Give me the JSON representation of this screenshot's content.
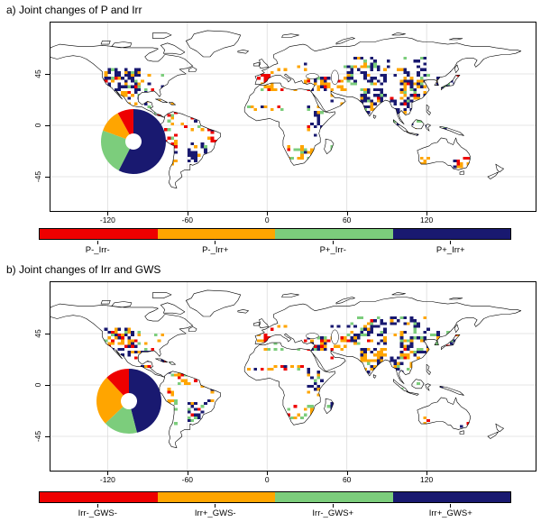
{
  "palette": {
    "red": "#EE0000",
    "orange": "#FFA500",
    "green": "#7CCD7C",
    "navy": "#191970"
  },
  "chart_data": [
    {
      "type": "map",
      "title": "a) Joint changes of P and Irr",
      "projection": "equirectangular",
      "lon_range": [
        -163,
        202
      ],
      "lat_range": [
        -75,
        90
      ],
      "x_ticks": [
        -120,
        -60,
        0,
        60,
        120
      ],
      "y_ticks": [
        45,
        0,
        -45
      ],
      "grid": true,
      "legend_position": "bottom",
      "categories": [
        "P-_Irr-",
        "P-_Irr+",
        "P+_Irr-",
        "P+_Irr+"
      ],
      "colors": [
        "#EE0000",
        "#FFA500",
        "#7CCD7C",
        "#191970"
      ],
      "donut": {
        "unit": "percent_of_colored_cells",
        "slices_clockwise_from_top": [
          {
            "label": "P+_Irr+",
            "color": "#191970",
            "pct": 57.5
          },
          {
            "label": "P+_Irr-",
            "color": "#7CCD7C",
            "pct": 23.0
          },
          {
            "label": "P-_Irr+",
            "color": "#FFA500",
            "pct": 11.5
          },
          {
            "label": "P-_Irr-",
            "color": "#EE0000",
            "pct": 8.0
          }
        ]
      },
      "cell_size_deg": 2.5,
      "regions": [
        [
          -124,
          -95,
          30,
          49,
          0.55,
          0.12,
          0.2,
          0.12,
          0.56
        ],
        [
          -95,
          -78,
          30,
          44,
          0.15,
          0.1,
          0.3,
          0.4,
          0.2
        ],
        [
          -112,
          -88,
          14,
          30,
          0.4,
          0.25,
          0.45,
          0.1,
          0.2
        ],
        [
          -92,
          -60,
          6,
          22,
          0.25,
          0.2,
          0.5,
          0.05,
          0.25
        ],
        [
          -75,
          -45,
          -5,
          8,
          0.18,
          0.2,
          0.3,
          0.3,
          0.2
        ],
        [
          -46,
          -34,
          -16,
          -2,
          0.35,
          0.3,
          0.4,
          0.2,
          0.1
        ],
        [
          -62,
          -46,
          -33,
          -15,
          0.5,
          0.05,
          0.25,
          0.1,
          0.6
        ],
        [
          -78,
          -68,
          -35,
          -4,
          0.25,
          0.3,
          0.4,
          0.2,
          0.1
        ],
        [
          -9,
          2,
          36,
          43,
          0.7,
          0.7,
          0.22,
          0.03,
          0.05
        ],
        [
          2,
          28,
          44,
          54,
          0.12,
          0.1,
          0.4,
          0.3,
          0.2
        ],
        [
          -10,
          34,
          29,
          36,
          0.3,
          0.15,
          0.6,
          0.1,
          0.15
        ],
        [
          -15,
          38,
          11,
          17,
          0.22,
          0.1,
          0.4,
          0.2,
          0.3
        ],
        [
          29,
          42,
          -10,
          12,
          0.45,
          0.02,
          0.15,
          0.08,
          0.75
        ],
        [
          15,
          33,
          -30,
          -18,
          0.5,
          0.08,
          0.64,
          0.16,
          0.12
        ],
        [
          43,
          49,
          -24,
          -13,
          0.5,
          0.05,
          0.45,
          0.3,
          0.2
        ],
        [
          26,
          60,
          30,
          42,
          0.55,
          0.18,
          0.55,
          0.09,
          0.18
        ],
        [
          42,
          58,
          13,
          27,
          0.12,
          0.05,
          0.3,
          0.15,
          0.5
        ],
        [
          58,
          90,
          34,
          52,
          0.4,
          0.05,
          0.2,
          0.2,
          0.55
        ],
        [
          58,
          120,
          50,
          59,
          0.25,
          0.02,
          0.08,
          0.2,
          0.7
        ],
        [
          68,
          89,
          8,
          31,
          0.65,
          0.04,
          0.1,
          0.16,
          0.7
        ],
        [
          98,
          122,
          21,
          41,
          0.6,
          0.05,
          0.3,
          0.15,
          0.5
        ],
        [
          122,
          146,
          31,
          46,
          0.45,
          0.1,
          0.1,
          0.3,
          0.5
        ],
        [
          92,
          109,
          9,
          24,
          0.45,
          0.02,
          0.18,
          0.1,
          0.7
        ],
        [
          95,
          141,
          -10,
          6,
          0.22,
          0.02,
          0.18,
          0.2,
          0.6
        ],
        [
          114,
          121,
          -35,
          -29,
          0.55,
          0.1,
          0.8,
          0.0,
          0.1
        ],
        [
          138,
          152,
          -38,
          -29,
          0.5,
          0.35,
          0.3,
          0.05,
          0.3
        ],
        [
          95,
          121,
          41,
          50,
          0.25,
          0.03,
          0.17,
          0.1,
          0.7
        ],
        [
          46,
          60,
          44,
          52,
          0.3,
          0.05,
          0.25,
          0.25,
          0.45
        ]
      ]
    },
    {
      "type": "map",
      "title": "b) Joint changes of Irr and GWS",
      "projection": "equirectangular",
      "lon_range": [
        -163,
        202
      ],
      "lat_range": [
        -75,
        90
      ],
      "x_ticks": [
        -120,
        -60,
        0,
        60,
        120
      ],
      "y_ticks": [
        45,
        0,
        -45
      ],
      "grid": true,
      "legend_position": "bottom",
      "categories": [
        "Irr-_GWS-",
        "Irr+_GWS-",
        "Irr-_GWS+",
        "Irr+_GWS+"
      ],
      "colors": [
        "#EE0000",
        "#FFA500",
        "#7CCD7C",
        "#191970"
      ],
      "donut": {
        "unit": "percent_of_colored_cells",
        "slices_clockwise_from_top": [
          {
            "label": "Irr+_GWS+",
            "color": "#191970",
            "pct": 46.0
          },
          {
            "label": "Irr-_GWS+",
            "color": "#7CCD7C",
            "pct": 17.0
          },
          {
            "label": "Irr+_GWS-",
            "color": "#FFA500",
            "pct": 25.0
          },
          {
            "label": "Irr-_GWS-",
            "color": "#EE0000",
            "pct": 12.0
          }
        ]
      },
      "cell_size_deg": 2.5,
      "regions": [
        [
          -124,
          -95,
          30,
          49,
          0.55,
          0.2,
          0.38,
          0.14,
          0.28
        ],
        [
          -95,
          -78,
          30,
          44,
          0.18,
          0.15,
          0.35,
          0.35,
          0.15
        ],
        [
          -112,
          -88,
          14,
          30,
          0.4,
          0.15,
          0.35,
          0.1,
          0.4
        ],
        [
          -92,
          -60,
          6,
          22,
          0.25,
          0.2,
          0.5,
          0.1,
          0.2
        ],
        [
          -75,
          -45,
          -5,
          8,
          0.18,
          0.2,
          0.4,
          0.3,
          0.1
        ],
        [
          -46,
          -34,
          -16,
          -2,
          0.35,
          0.2,
          0.4,
          0.25,
          0.15
        ],
        [
          -62,
          -46,
          -33,
          -15,
          0.5,
          0.1,
          0.3,
          0.2,
          0.4
        ],
        [
          -78,
          -68,
          -35,
          -4,
          0.25,
          0.2,
          0.4,
          0.25,
          0.15
        ],
        [
          -9,
          2,
          36,
          43,
          0.7,
          0.65,
          0.27,
          0.03,
          0.05
        ],
        [
          2,
          28,
          44,
          54,
          0.12,
          0.2,
          0.4,
          0.25,
          0.15
        ],
        [
          -10,
          34,
          29,
          36,
          0.3,
          0.15,
          0.5,
          0.25,
          0.1
        ],
        [
          -15,
          38,
          11,
          17,
          0.22,
          0.15,
          0.4,
          0.2,
          0.25
        ],
        [
          29,
          42,
          -10,
          12,
          0.45,
          0.02,
          0.2,
          0.13,
          0.65
        ],
        [
          15,
          33,
          -30,
          -18,
          0.5,
          0.1,
          0.5,
          0.3,
          0.1
        ],
        [
          43,
          49,
          -24,
          -13,
          0.5,
          0.02,
          0.3,
          0.38,
          0.3
        ],
        [
          26,
          60,
          30,
          42,
          0.55,
          0.25,
          0.45,
          0.1,
          0.2
        ],
        [
          42,
          58,
          13,
          27,
          0.12,
          0.05,
          0.4,
          0.15,
          0.4
        ],
        [
          58,
          90,
          34,
          52,
          0.4,
          0.1,
          0.3,
          0.15,
          0.45
        ],
        [
          58,
          120,
          50,
          59,
          0.25,
          0.02,
          0.13,
          0.2,
          0.65
        ],
        [
          68,
          89,
          8,
          31,
          0.65,
          0.08,
          0.45,
          0.1,
          0.37
        ],
        [
          98,
          122,
          21,
          41,
          0.6,
          0.05,
          0.3,
          0.2,
          0.45
        ],
        [
          122,
          146,
          31,
          46,
          0.45,
          0.1,
          0.1,
          0.3,
          0.5
        ],
        [
          92,
          109,
          9,
          24,
          0.45,
          0.03,
          0.35,
          0.12,
          0.5
        ],
        [
          95,
          141,
          -10,
          6,
          0.22,
          0.02,
          0.4,
          0.18,
          0.4
        ],
        [
          114,
          121,
          -35,
          -29,
          0.55,
          0.2,
          0.8,
          0.0,
          0.0
        ],
        [
          138,
          152,
          -38,
          -29,
          0.5,
          0.3,
          0.4,
          0.05,
          0.25
        ],
        [
          95,
          121,
          41,
          50,
          0.25,
          0.03,
          0.3,
          0.1,
          0.57
        ],
        [
          46,
          60,
          44,
          52,
          0.3,
          0.1,
          0.3,
          0.25,
          0.35
        ]
      ]
    }
  ]
}
